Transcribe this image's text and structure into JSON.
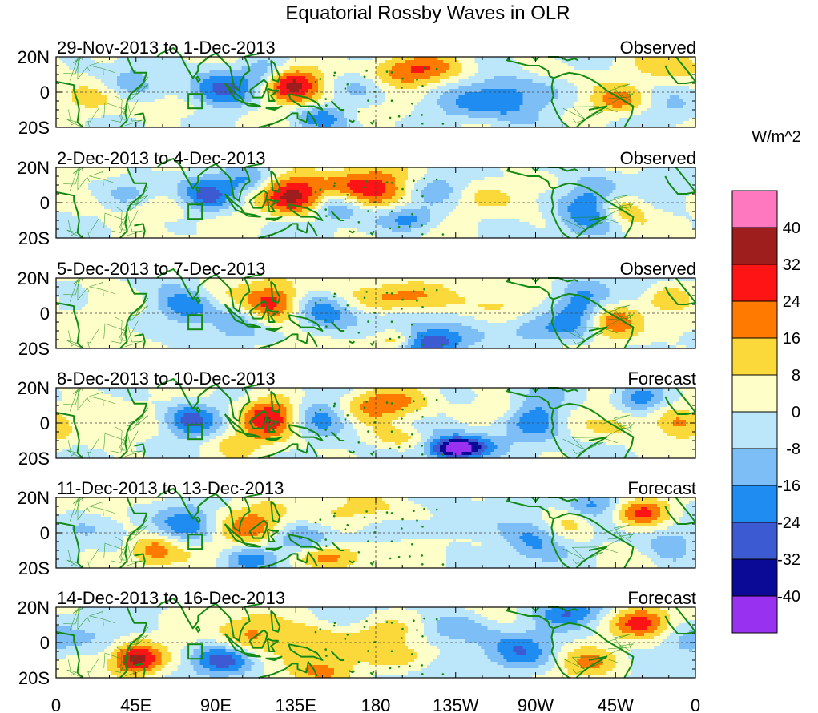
{
  "chart_data": {
    "type": "heatmap",
    "title": "Equatorial Rossby Waves in OLR",
    "variable": "OLR anomaly",
    "units": "W/m^2",
    "x_tick_labels": [
      "0",
      "45E",
      "90E",
      "135E",
      "180",
      "135W",
      "90W",
      "45W",
      "0"
    ],
    "x_values": [
      0,
      45,
      90,
      135,
      180,
      225,
      270,
      315,
      360
    ],
    "xlim": [
      0,
      360
    ],
    "y_tick_labels": [
      "20N",
      "0",
      "20S"
    ],
    "y_values": [
      20,
      0,
      -20
    ],
    "ylim": [
      -20,
      20
    ],
    "colorbar": {
      "label": "W/m^2",
      "levels": [
        -40,
        -32,
        -24,
        -16,
        -8,
        0,
        8,
        16,
        24,
        32,
        40
      ],
      "level_labels": [
        "-40",
        "-32",
        "-24",
        "-16",
        "-8",
        "0",
        "8",
        "16",
        "24",
        "32",
        "40"
      ],
      "colors": [
        "#9932f0",
        "#0a0a96",
        "#3c5ad2",
        "#1e8cf0",
        "#7cbef5",
        "#bce6fa",
        "#fefec8",
        "#fcd93a",
        "#fe7a00",
        "#fe1414",
        "#9e1e1e",
        "#fe78c0"
      ]
    },
    "panels": [
      {
        "date_label": "29-Nov-2013 to 1-Dec-2013",
        "kind": "Observed",
        "features": [
          [
            130,
            5,
            14,
            7,
            38
          ],
          [
            200,
            12,
            22,
            6,
            22
          ],
          [
            92,
            2,
            14,
            8,
            -24
          ],
          [
            117,
            9,
            9,
            6,
            -22
          ],
          [
            172,
            5,
            12,
            7,
            -14
          ],
          [
            255,
            -4,
            18,
            10,
            -22
          ],
          [
            43,
            7,
            10,
            7,
            -14
          ],
          [
            150,
            -14,
            11,
            5,
            -22
          ],
          [
            67,
            -9,
            14,
            4,
            12
          ],
          [
            318,
            -6,
            12,
            6,
            18
          ],
          [
            350,
            15,
            14,
            7,
            12
          ],
          [
            273,
            11,
            14,
            5,
            8
          ],
          [
            20,
            -4,
            14,
            6,
            6
          ],
          [
            228,
            -9,
            14,
            5,
            -8
          ],
          [
            190,
            -12,
            22,
            4,
            6
          ],
          [
            345,
            -10,
            14,
            7,
            -6
          ]
        ]
      },
      {
        "date_label": "2-Dec-2013 to 4-Dec-2013",
        "kind": "Observed",
        "features": [
          [
            135,
            4,
            13,
            8,
            34
          ],
          [
            180,
            8,
            18,
            8,
            28
          ],
          [
            86,
            3,
            11,
            7,
            -24
          ],
          [
            157,
            -3,
            10,
            6,
            -20
          ],
          [
            108,
            12,
            9,
            5,
            -18
          ],
          [
            200,
            -9,
            12,
            5,
            -20
          ],
          [
            300,
            0,
            12,
            12,
            -24
          ],
          [
            318,
            -3,
            10,
            7,
            20
          ],
          [
            58,
            -4,
            14,
            5,
            10
          ],
          [
            215,
            7,
            12,
            6,
            -14
          ],
          [
            42,
            6,
            10,
            6,
            -12
          ],
          [
            352,
            3,
            10,
            8,
            -6
          ],
          [
            248,
            4,
            14,
            6,
            8
          ],
          [
            12,
            0,
            14,
            6,
            6
          ]
        ]
      },
      {
        "date_label": "5-Dec-2013 to 7-Dec-2013",
        "kind": "Observed",
        "features": [
          [
            122,
            6,
            12,
            8,
            30
          ],
          [
            185,
            10,
            20,
            6,
            22
          ],
          [
            73,
            3,
            11,
            7,
            -26
          ],
          [
            150,
            2,
            12,
            8,
            -22
          ],
          [
            195,
            -5,
            14,
            5,
            -14
          ],
          [
            210,
            -16,
            14,
            5,
            -30
          ],
          [
            192,
            -15,
            8,
            4,
            20
          ],
          [
            312,
            -4,
            12,
            7,
            18
          ],
          [
            295,
            0,
            10,
            10,
            -22
          ],
          [
            345,
            10,
            10,
            5,
            14
          ],
          [
            250,
            5,
            14,
            6,
            10
          ],
          [
            100,
            -5,
            10,
            6,
            -12
          ],
          [
            30,
            6,
            14,
            7,
            6
          ],
          [
            270,
            -10,
            14,
            5,
            -14
          ],
          [
            330,
            12,
            10,
            5,
            -10
          ],
          [
            350,
            -8,
            10,
            7,
            6
          ]
        ]
      },
      {
        "date_label": "8-Dec-2013 to 10-Dec-2013",
        "kind": "Forecast",
        "features": [
          [
            120,
            4,
            12,
            8,
            32
          ],
          [
            182,
            10,
            18,
            6,
            20
          ],
          [
            75,
            2,
            11,
            7,
            -24
          ],
          [
            150,
            3,
            12,
            8,
            -22
          ],
          [
            230,
            -12,
            16,
            5,
            -26
          ],
          [
            225,
            -16,
            10,
            4,
            -34
          ],
          [
            195,
            -9,
            12,
            5,
            16
          ],
          [
            270,
            2,
            12,
            10,
            -22
          ],
          [
            328,
            14,
            10,
            6,
            -24
          ],
          [
            320,
            -2,
            12,
            7,
            12
          ],
          [
            350,
            0,
            10,
            8,
            16
          ],
          [
            100,
            -10,
            12,
            5,
            10
          ],
          [
            40,
            -4,
            14,
            6,
            6
          ],
          [
            250,
            8,
            12,
            5,
            12
          ]
        ]
      },
      {
        "date_label": "11-Dec-2013 to 13-Dec-2013",
        "kind": "Forecast",
        "features": [
          [
            115,
            3,
            14,
            9,
            24
          ],
          [
            180,
            12,
            18,
            6,
            12
          ],
          [
            75,
            4,
            11,
            7,
            -20
          ],
          [
            133,
            -3,
            14,
            7,
            -22
          ],
          [
            108,
            -15,
            10,
            5,
            -18
          ],
          [
            155,
            -13,
            14,
            5,
            22
          ],
          [
            55,
            -10,
            10,
            6,
            22
          ],
          [
            268,
            -2,
            12,
            10,
            -18
          ],
          [
            330,
            12,
            12,
            6,
            28
          ],
          [
            300,
            16,
            12,
            5,
            -24
          ],
          [
            345,
            -6,
            10,
            7,
            -16
          ],
          [
            290,
            6,
            10,
            8,
            14
          ],
          [
            225,
            4,
            16,
            6,
            -8
          ],
          [
            20,
            4,
            12,
            6,
            -6
          ]
        ]
      },
      {
        "date_label": "14-Dec-2013 to 16-Dec-2013",
        "kind": "Forecast",
        "features": [
          [
            110,
            5,
            12,
            8,
            20
          ],
          [
            145,
            0,
            14,
            7,
            18
          ],
          [
            45,
            -10,
            10,
            6,
            34
          ],
          [
            95,
            -10,
            12,
            6,
            -24
          ],
          [
            150,
            -16,
            12,
            5,
            16
          ],
          [
            180,
            5,
            12,
            6,
            12
          ],
          [
            225,
            8,
            14,
            6,
            -14
          ],
          [
            260,
            -5,
            14,
            8,
            -20
          ],
          [
            290,
            17,
            14,
            5,
            -20
          ],
          [
            330,
            12,
            12,
            6,
            28
          ],
          [
            355,
            0,
            10,
            8,
            -12
          ],
          [
            200,
            -8,
            12,
            5,
            12
          ],
          [
            20,
            5,
            12,
            6,
            -8
          ],
          [
            300,
            -12,
            12,
            6,
            14
          ]
        ]
      }
    ]
  }
}
